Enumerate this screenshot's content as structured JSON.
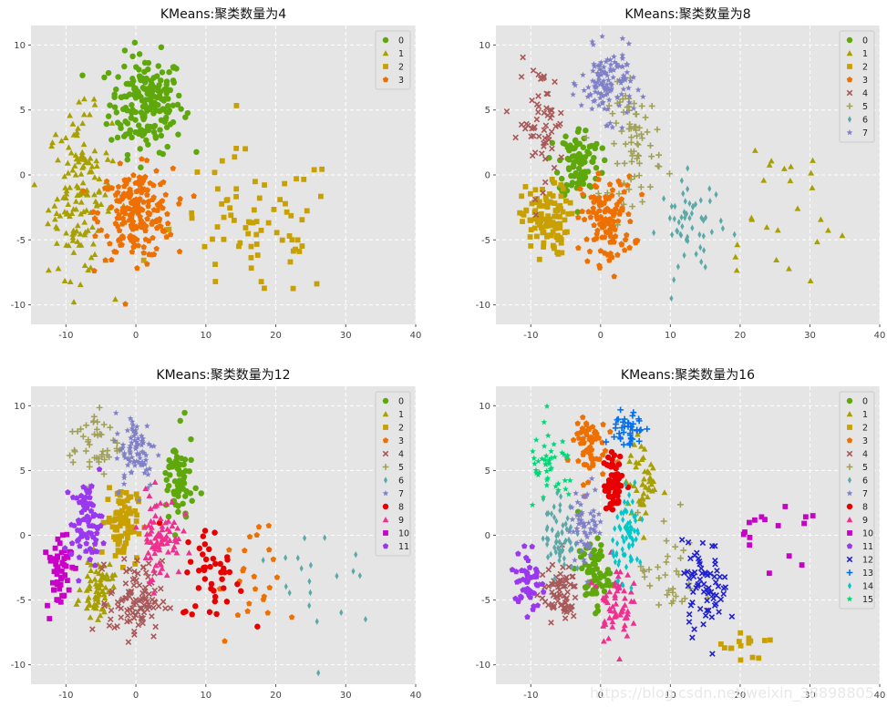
{
  "watermark": "https://blog.csdn.net/weixin_38898805",
  "palette": [
    "#5fa80c",
    "#a8a000",
    "#c8a000",
    "#ee7000",
    "#a85858",
    "#a0a058",
    "#5aa8a8",
    "#8080c8",
    "#e80000",
    "#f03090",
    "#c800c8",
    "#9a38f0",
    "#2020d0",
    "#0070f0",
    "#00c8c8",
    "#00d878"
  ],
  "markers": [
    "circle",
    "triangle",
    "square",
    "pentagon",
    "x",
    "plus",
    "diamond",
    "star",
    "circle",
    "triangle",
    "square",
    "pentagon",
    "x",
    "plus",
    "diamond",
    "star"
  ],
  "chart_data": [
    {
      "type": "scatter",
      "title": "KMeans:聚类数量为4",
      "xlim": [
        -15,
        40
      ],
      "ylim": [
        -11.5,
        11.5
      ],
      "xticks": [
        -10,
        0,
        10,
        20,
        30,
        40
      ],
      "yticks": [
        -10,
        -5,
        0,
        5,
        10
      ],
      "grid": true,
      "legend": "top-right",
      "legend_labels": [
        "0",
        "1",
        "2",
        "3"
      ],
      "clusters": [
        {
          "cx": 1.5,
          "cy": 5.5,
          "sx": 3.5,
          "sy": 2.5,
          "n": 200
        },
        {
          "cx": -8,
          "cy": -1.5,
          "sx": 3.0,
          "sy": 4.2,
          "n": 150
        },
        {
          "cx": 17,
          "cy": -4,
          "sx": 8,
          "sy": 3.8,
          "n": 75
        },
        {
          "cx": 0,
          "cy": -3,
          "sx": 3.5,
          "sy": 2.3,
          "n": 200
        }
      ]
    },
    {
      "type": "scatter",
      "title": "KMeans:聚类数量为8",
      "xlim": [
        -15,
        40
      ],
      "ylim": [
        -11.5,
        11.5
      ],
      "xticks": [
        -10,
        0,
        10,
        20,
        30,
        40
      ],
      "yticks": [
        -10,
        -5,
        0,
        5,
        10
      ],
      "grid": true,
      "legend": "top-right",
      "legend_labels": [
        "0",
        "1",
        "2",
        "3",
        "4",
        "5",
        "6",
        "7"
      ],
      "clusters": [
        {
          "cx": -3,
          "cy": 1,
          "sx": 2,
          "sy": 1.8,
          "n": 100
        },
        {
          "cx": 25,
          "cy": -3,
          "sx": 7,
          "sy": 5,
          "n": 25
        },
        {
          "cx": -8,
          "cy": -3.5,
          "sx": 2.2,
          "sy": 1.8,
          "n": 110
        },
        {
          "cx": 1,
          "cy": -3.5,
          "sx": 2.5,
          "sy": 2.2,
          "n": 120
        },
        {
          "cx": -8.5,
          "cy": 4,
          "sx": 2.2,
          "sy": 3,
          "n": 60
        },
        {
          "cx": 5,
          "cy": 2.5,
          "sx": 2.5,
          "sy": 3,
          "n": 70
        },
        {
          "cx": 13,
          "cy": -4,
          "sx": 3,
          "sy": 2.5,
          "n": 55
        },
        {
          "cx": 1,
          "cy": 7,
          "sx": 2.5,
          "sy": 1.8,
          "n": 120
        }
      ]
    },
    {
      "type": "scatter",
      "title": "KMeans:聚类数量为12",
      "xlim": [
        -15,
        40
      ],
      "ylim": [
        -11.5,
        11.5
      ],
      "xticks": [
        -10,
        0,
        10,
        20,
        30,
        40
      ],
      "yticks": [
        -10,
        -5,
        0,
        5,
        10
      ],
      "grid": true,
      "legend": "top-right",
      "legend_labels": [
        "0",
        "1",
        "2",
        "3",
        "4",
        "5",
        "6",
        "7",
        "8",
        "9",
        "10",
        "11"
      ],
      "clusters": [
        {
          "cx": 6,
          "cy": 4,
          "sx": 1.5,
          "sy": 2.5,
          "n": 70
        },
        {
          "cx": -5.5,
          "cy": -4,
          "sx": 1.5,
          "sy": 1.5,
          "n": 70
        },
        {
          "cx": -2,
          "cy": 1,
          "sx": 1.5,
          "sy": 2,
          "n": 90
        },
        {
          "cx": 16,
          "cy": -4,
          "sx": 3,
          "sy": 3,
          "n": 25
        },
        {
          "cx": 0,
          "cy": -5,
          "sx": 2.5,
          "sy": 2,
          "n": 100
        },
        {
          "cx": -6,
          "cy": 7,
          "sx": 2.5,
          "sy": 1.8,
          "n": 45
        },
        {
          "cx": 28,
          "cy": -3.5,
          "sx": 5,
          "sy": 4,
          "n": 20
        },
        {
          "cx": 0,
          "cy": 6.5,
          "sx": 2,
          "sy": 2,
          "n": 80
        },
        {
          "cx": 11,
          "cy": -3,
          "sx": 3,
          "sy": 2.5,
          "n": 45
        },
        {
          "cx": 3.5,
          "cy": 0,
          "sx": 2,
          "sy": 2.2,
          "n": 80
        },
        {
          "cx": -11,
          "cy": -2.5,
          "sx": 1.2,
          "sy": 2.2,
          "n": 55
        },
        {
          "cx": -7,
          "cy": 1,
          "sx": 1.5,
          "sy": 2,
          "n": 80
        }
      ]
    },
    {
      "type": "scatter",
      "title": "KMeans:聚类数量为16",
      "xlim": [
        -15,
        40
      ],
      "ylim": [
        -11.5,
        11.5
      ],
      "xticks": [
        -10,
        0,
        10,
        20,
        30,
        40
      ],
      "yticks": [
        -10,
        -5,
        0,
        5,
        10
      ],
      "grid": true,
      "legend": "top-right",
      "legend_labels": [
        "0",
        "1",
        "2",
        "3",
        "4",
        "5",
        "6",
        "7",
        "8",
        "9",
        "10",
        "11",
        "12",
        "13",
        "14",
        "15"
      ],
      "clusters": [
        {
          "cx": -1,
          "cy": -3,
          "sx": 1.5,
          "sy": 1.8,
          "n": 70
        },
        {
          "cx": 6,
          "cy": 4,
          "sx": 1.5,
          "sy": 2.2,
          "n": 50
        },
        {
          "cx": 21,
          "cy": -8.5,
          "sx": 2.5,
          "sy": 1.2,
          "n": 15
        },
        {
          "cx": -2,
          "cy": 7,
          "sx": 1.8,
          "sy": 1.8,
          "n": 60
        },
        {
          "cx": -6,
          "cy": -4.5,
          "sx": 1.8,
          "sy": 1.4,
          "n": 70
        },
        {
          "cx": 10,
          "cy": -3,
          "sx": 3,
          "sy": 3,
          "n": 35
        },
        {
          "cx": -6,
          "cy": 0,
          "sx": 1.5,
          "sy": 2,
          "n": 60
        },
        {
          "cx": -2,
          "cy": 1,
          "sx": 1.5,
          "sy": 2,
          "n": 60
        },
        {
          "cx": 2,
          "cy": 4,
          "sx": 1,
          "sy": 1.5,
          "n": 60
        },
        {
          "cx": 2,
          "cy": -5,
          "sx": 1.5,
          "sy": 2,
          "n": 60
        },
        {
          "cx": 25,
          "cy": 0,
          "sx": 5,
          "sy": 2,
          "n": 16
        },
        {
          "cx": -10.5,
          "cy": -3.5,
          "sx": 1.2,
          "sy": 2,
          "n": 50
        },
        {
          "cx": 15,
          "cy": -4,
          "sx": 2.2,
          "sy": 2.2,
          "n": 70
        },
        {
          "cx": 4,
          "cy": 8,
          "sx": 1.5,
          "sy": 1.2,
          "n": 40
        },
        {
          "cx": 4,
          "cy": 0,
          "sx": 1.5,
          "sy": 2,
          "n": 70
        },
        {
          "cx": -7,
          "cy": 5,
          "sx": 2.2,
          "sy": 2,
          "n": 45
        }
      ]
    }
  ]
}
